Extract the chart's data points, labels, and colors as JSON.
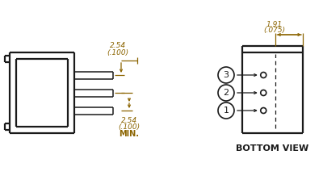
{
  "bg_color": "#ffffff",
  "line_color": "#1a1a1a",
  "dim_color": "#8B6400",
  "text_color": "#1a1a1a",
  "figsize": [
    4.0,
    2.33
  ],
  "dpi": 100,
  "lw_body": 1.6,
  "lw_dim": 0.9,
  "lw_pin": 1.1
}
